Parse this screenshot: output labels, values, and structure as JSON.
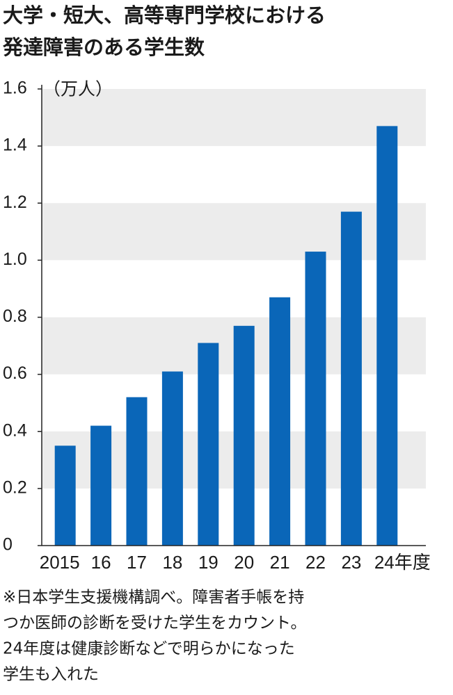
{
  "chart_data": {
    "type": "bar",
    "title_lines": [
      "大学・短大、高等専門学校における",
      "発達障害のある学生数"
    ],
    "unit": "（万人）",
    "categories": [
      "2015",
      "16",
      "17",
      "18",
      "19",
      "20",
      "21",
      "22",
      "23",
      "24年度"
    ],
    "values": [
      0.35,
      0.42,
      0.52,
      0.61,
      0.71,
      0.77,
      0.87,
      1.03,
      1.17,
      1.47
    ],
    "color": "#0a66b8",
    "ylim": [
      0,
      1.6
    ],
    "yticks": [
      0,
      0.2,
      0.4,
      0.6,
      0.8,
      {
        "value": 1,
        "label": "1.0"
      },
      1.2,
      1.4,
      1.6
    ],
    "grid": "bands",
    "note": [
      "※日本学生支援機構調べ。障害者手帳を持",
      "つか医師の診断を受けた学生をカウント。",
      "24年度は健康診断などで明らかになった",
      "学生も入れた"
    ]
  }
}
